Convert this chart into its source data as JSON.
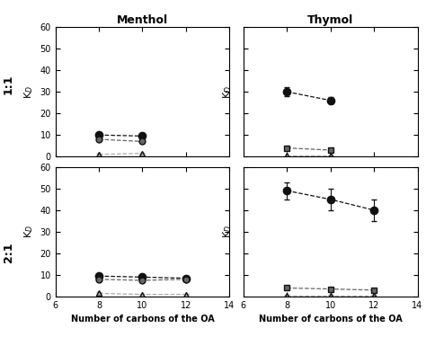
{
  "col_titles": [
    "Menthol",
    "Thymol"
  ],
  "row_labels": [
    "1:1",
    "2:1"
  ],
  "xlabel": "Number of carbons of the OA",
  "ylabel": "K$_D$",
  "ylim": [
    0,
    60
  ],
  "xlim": [
    6,
    14
  ],
  "yticks": [
    0,
    10,
    20,
    30,
    40,
    50,
    60
  ],
  "xticks": [
    6,
    8,
    10,
    12,
    14
  ],
  "subplots": [
    {
      "name": "top_left",
      "series": [
        {
          "x": [
            8,
            10
          ],
          "y": [
            10,
            9.5
          ],
          "yerr": [
            0.5,
            0.5
          ],
          "color": "#111111",
          "marker": "o",
          "ms": 6
        },
        {
          "x": [
            8,
            10
          ],
          "y": [
            8,
            7
          ],
          "yerr": [
            0.5,
            0.5
          ],
          "color": "#666666",
          "marker": "o",
          "ms": 5
        },
        {
          "x": [
            8,
            10
          ],
          "y": [
            1,
            1.5
          ],
          "yerr": [
            0.4,
            0.4
          ],
          "color": "#aaaaaa",
          "marker": "^",
          "ms": 5
        }
      ]
    },
    {
      "name": "top_right",
      "series": [
        {
          "x": [
            8,
            10
          ],
          "y": [
            30,
            26
          ],
          "yerr": [
            2.0,
            1.5
          ],
          "color": "#111111",
          "marker": "o",
          "ms": 6
        },
        {
          "x": [
            8,
            10
          ],
          "y": [
            4,
            3
          ],
          "yerr": [
            0.5,
            0.4
          ],
          "color": "#666666",
          "marker": "s",
          "ms": 5
        },
        {
          "x": [
            8,
            10
          ],
          "y": [
            0.5,
            0.5
          ],
          "yerr": [
            0.2,
            0.2
          ],
          "color": "#aaaaaa",
          "marker": "^",
          "ms": 4
        }
      ]
    },
    {
      "name": "bottom_left",
      "series": [
        {
          "x": [
            8,
            10,
            12
          ],
          "y": [
            9.5,
            9,
            8.5
          ],
          "yerr": [
            0.5,
            0.5,
            0.5
          ],
          "color": "#111111",
          "marker": "o",
          "ms": 6
        },
        {
          "x": [
            8,
            10,
            12
          ],
          "y": [
            8,
            7.5,
            8
          ],
          "yerr": [
            0.4,
            0.4,
            0.4
          ],
          "color": "#666666",
          "marker": "o",
          "ms": 5
        },
        {
          "x": [
            8,
            10,
            12
          ],
          "y": [
            1.5,
            1,
            1
          ],
          "yerr": [
            0.4,
            0.4,
            0.3
          ],
          "color": "#aaaaaa",
          "marker": "^",
          "ms": 5
        }
      ]
    },
    {
      "name": "bottom_right",
      "series": [
        {
          "x": [
            8,
            10,
            12
          ],
          "y": [
            49,
            45,
            40
          ],
          "yerr": [
            4.0,
            5.0,
            5.0
          ],
          "color": "#111111",
          "marker": "o",
          "ms": 6
        },
        {
          "x": [
            8,
            10,
            12
          ],
          "y": [
            4,
            3.5,
            3
          ],
          "yerr": [
            0.5,
            0.5,
            0.5
          ],
          "color": "#666666",
          "marker": "s",
          "ms": 5
        },
        {
          "x": [
            8,
            10,
            12
          ],
          "y": [
            0.5,
            0.5,
            0.5
          ],
          "yerr": [
            0.2,
            0.2,
            0.2
          ],
          "color": "#aaaaaa",
          "marker": "^",
          "ms": 4
        }
      ]
    }
  ]
}
